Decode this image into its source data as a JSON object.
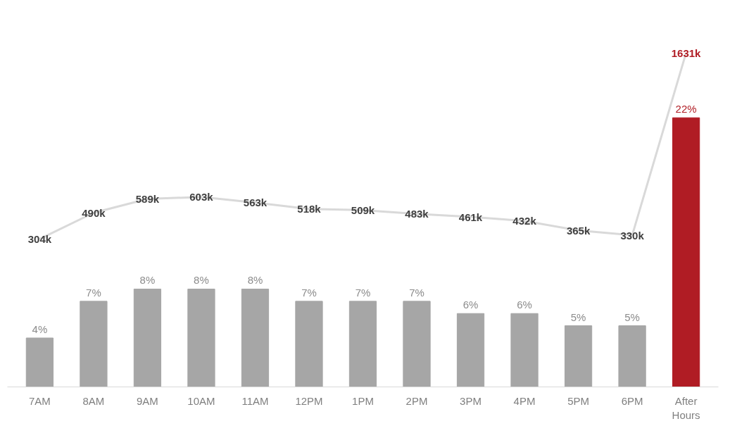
{
  "chart_data": {
    "type": "bar",
    "categories": [
      "7AM",
      "8AM",
      "9AM",
      "10AM",
      "11AM",
      "12PM",
      "1PM",
      "2PM",
      "3PM",
      "4PM",
      "5PM",
      "6PM",
      "After Hours"
    ],
    "series": [
      {
        "color": "#a6a6a6",
        "colors": [
          "#a6a6a6",
          "#a6a6a6",
          "#a6a6a6",
          "#a6a6a6",
          "#a6a6a6",
          "#a6a6a6",
          "#a6a6a6",
          "#a6a6a6",
          "#a6a6a6",
          "#a6a6a6",
          "#a6a6a6",
          "#a6a6a6",
          "#b01c24"
        ],
        "values": [
          4,
          7,
          8,
          8,
          8,
          7,
          7,
          7,
          6,
          6,
          5,
          5,
          22
        ],
        "value_labels": [
          "4%",
          "7%",
          "8%",
          "8%",
          "8%",
          "7%",
          "7%",
          "7%",
          "6%",
          "6%",
          "5%",
          "5%",
          "22%"
        ]
      },
      {
        "type": "line",
        "axis": "y2",
        "color": "#d9d9d9",
        "values": [
          304,
          490,
          589,
          603,
          563,
          518,
          509,
          483,
          461,
          432,
          365,
          330,
          1631
        ],
        "value_labels": [
          "304k",
          "490k",
          "589k",
          "603k",
          "563k",
          "518k",
          "509k",
          "483k",
          "461k",
          "432k",
          "365k",
          "330k",
          "1631k"
        ]
      }
    ],
    "grid": false
  }
}
